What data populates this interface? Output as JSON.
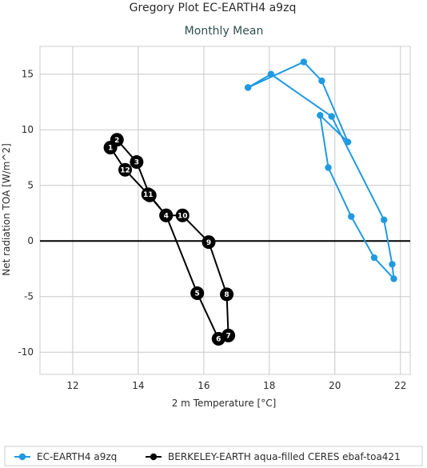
{
  "chart_data": {
    "type": "line",
    "title": "Gregory Plot EC-EARTH4 a9zq",
    "subtitle": "Monthly Mean",
    "xlabel": "2 m Temperature [°C]",
    "ylabel": "Net radiation TOA [W/m^2]",
    "xlim": [
      11,
      22.3
    ],
    "ylim": [
      -12,
      17.5
    ],
    "xticks": [
      12,
      14,
      16,
      18,
      20,
      22
    ],
    "yticks": [
      -10,
      -5,
      0,
      5,
      10,
      15
    ],
    "grid": true,
    "zero_line": true,
    "legend_position": "bottom",
    "series": [
      {
        "name": "EC-EARTH4 a9zq",
        "color": "#1f9ae0",
        "x": [
          17.35,
          18.05,
          19.9,
          21.5,
          21.75,
          21.8,
          21.2,
          20.5,
          19.8,
          19.55,
          20.4,
          19.6,
          19.05,
          17.35
        ],
        "y": [
          13.8,
          15.0,
          11.2,
          1.9,
          -2.1,
          -3.4,
          -1.5,
          2.2,
          6.6,
          11.3,
          8.9,
          14.4,
          16.1,
          13.8
        ],
        "labels": []
      },
      {
        "name": "BERKELEY-EARTH aqua-filled CERES ebaf-toa421",
        "color": "#000000",
        "x": [
          13.15,
          13.35,
          13.95,
          14.35,
          14.85,
          15.35,
          16.15,
          16.7,
          16.75,
          16.45,
          15.8,
          14.85,
          14.3,
          13.6,
          13.15
        ],
        "y": [
          8.4,
          9.1,
          7.1,
          4.1,
          2.3,
          2.3,
          -0.1,
          -4.8,
          -8.5,
          -8.8,
          -4.7,
          2.3,
          4.2,
          6.4,
          8.4
        ],
        "labels": [
          "1",
          "2",
          "3",
          "",
          "",
          "10",
          "9",
          "8",
          "7",
          "6",
          "5",
          "4",
          "11",
          "12",
          ""
        ]
      }
    ]
  }
}
